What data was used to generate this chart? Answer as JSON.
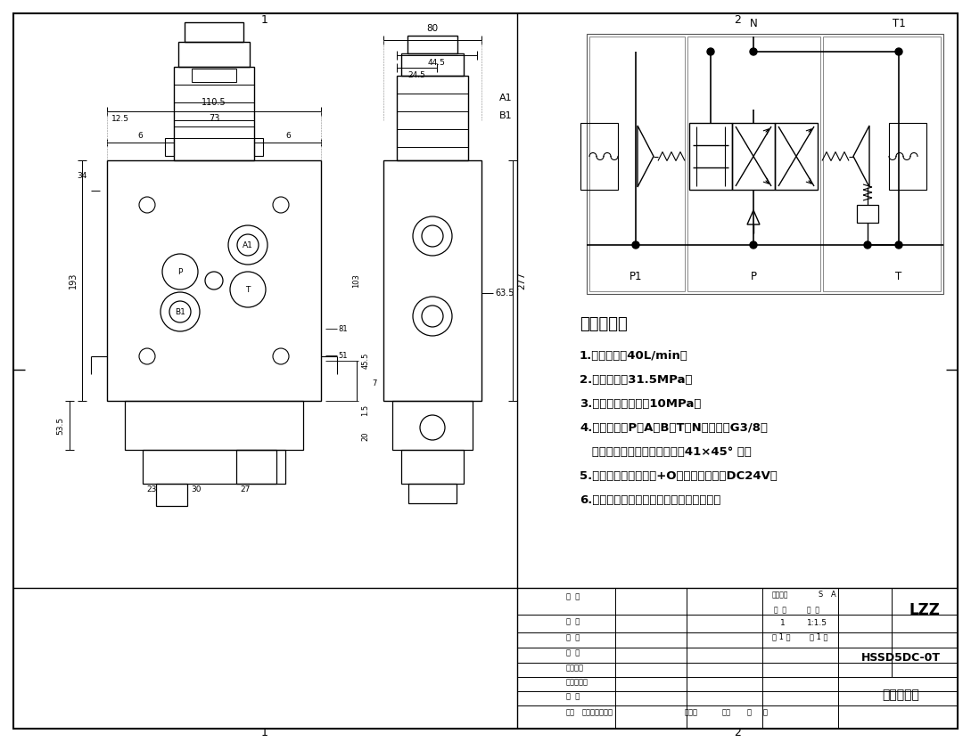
{
  "bg_color": "#ffffff",
  "line_color": "#000000",
  "title_block": {
    "company": "LZZ",
    "drawing_no": "HSSD5DC-0T",
    "name": "一联多路阀",
    "scale": "1:1.5",
    "sheet": "1",
    "total_sheets": "1"
  },
  "tech_requirements": {
    "title": "技术要求：",
    "items": [
      "1.额定流量：40L/min；",
      "2.额定压力：31.5MPa；",
      "3.安全阀调定压力：10MPa；",
      "4.油口尺寸：P、A、B、T、N油口均为G3/8；",
      "   油口均为平面密封，油孔口倁41×45° 角；",
      "5.控制方式：电磁控制+O型阀杆；电压：DC24V；",
      "6.阀体表面磷化处理，安全阀及螺堡镀锥。"
    ]
  }
}
